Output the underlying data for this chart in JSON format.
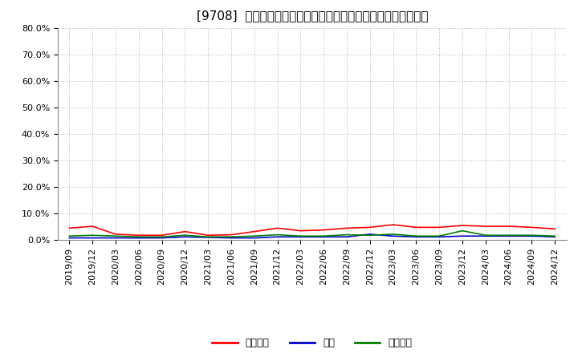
{
  "title": "[9708]  売上債権、在庫、買入債務の総資産に対する比率の推移",
  "xlabels": [
    "2019/09",
    "2019/12",
    "2020/03",
    "2020/06",
    "2020/09",
    "2020/12",
    "2021/03",
    "2021/06",
    "2021/09",
    "2021/12",
    "2022/03",
    "2022/06",
    "2022/09",
    "2022/12",
    "2023/03",
    "2023/06",
    "2023/09",
    "2023/12",
    "2024/03",
    "2024/06",
    "2024/09",
    "2024/12"
  ],
  "売上債権": [
    4.5,
    5.2,
    2.2,
    1.8,
    1.8,
    3.2,
    1.8,
    2.0,
    3.2,
    4.5,
    3.5,
    3.8,
    4.5,
    4.8,
    5.8,
    4.8,
    4.8,
    5.5,
    5.2,
    5.2,
    4.8,
    4.2
  ],
  "在庫": [
    0.8,
    0.8,
    0.8,
    0.8,
    0.8,
    1.2,
    1.0,
    0.8,
    0.8,
    1.2,
    1.2,
    1.2,
    1.2,
    2.2,
    1.5,
    1.2,
    1.2,
    1.5,
    1.5,
    1.5,
    1.5,
    1.2
  ],
  "買入債務": [
    1.5,
    1.8,
    1.5,
    1.2,
    1.2,
    1.8,
    1.2,
    1.2,
    1.5,
    2.0,
    1.5,
    1.5,
    2.0,
    1.8,
    2.2,
    1.5,
    1.5,
    3.5,
    1.8,
    1.8,
    1.8,
    1.5
  ],
  "line_colors": {
    "売上債権": "#ff0000",
    "在庫": "#0000cc",
    "買入債務": "#008000"
  },
  "legend_labels": [
    "売上債権",
    "在庫",
    "買入債務"
  ],
  "ylim": [
    0.0,
    80.0
  ],
  "yticks": [
    0.0,
    10.0,
    20.0,
    30.0,
    40.0,
    50.0,
    60.0,
    70.0,
    80.0
  ],
  "background_color": "#ffffff",
  "plot_bg_color": "#ffffff",
  "grid_color": "#aaaaaa",
  "title_fontsize": 11,
  "tick_fontsize": 8,
  "legend_fontsize": 9
}
